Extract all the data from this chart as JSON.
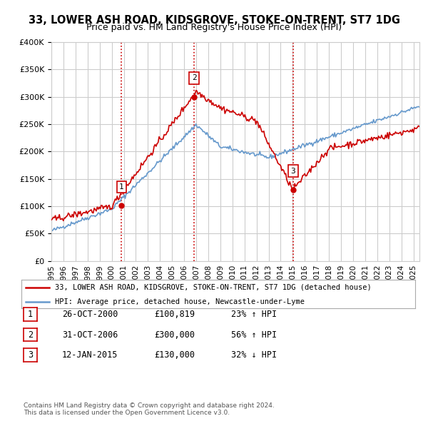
{
  "title": "33, LOWER ASH ROAD, KIDSGROVE, STOKE-ON-TRENT, ST7 1DG",
  "subtitle": "Price paid vs. HM Land Registry's House Price Index (HPI)",
  "ylim": [
    0,
    400000
  ],
  "yticks": [
    0,
    50000,
    100000,
    150000,
    200000,
    250000,
    300000,
    350000,
    400000
  ],
  "xlim_start": 1995.0,
  "xlim_end": 2025.5,
  "sale_dates": [
    2000.82,
    2006.83,
    2015.04
  ],
  "sale_prices": [
    100819,
    300000,
    130000
  ],
  "sale_labels": [
    "1",
    "2",
    "3"
  ],
  "vline_color": "#cc0000",
  "legend_label_red": "33, LOWER ASH ROAD, KIDSGROVE, STOKE-ON-TRENT, ST7 1DG (detached house)",
  "legend_label_blue": "HPI: Average price, detached house, Newcastle-under-Lyme",
  "table_rows": [
    [
      "1",
      "26-OCT-2000",
      "£100,819",
      "23% ↑ HPI"
    ],
    [
      "2",
      "31-OCT-2006",
      "£300,000",
      "56% ↑ HPI"
    ],
    [
      "3",
      "12-JAN-2015",
      "£130,000",
      "32% ↓ HPI"
    ]
  ],
  "footer": "Contains HM Land Registry data © Crown copyright and database right 2024.\nThis data is licensed under the Open Government Licence v3.0.",
  "bg_color": "#ffffff",
  "grid_color": "#cccccc",
  "red_line_color": "#cc0000",
  "blue_line_color": "#6699cc"
}
